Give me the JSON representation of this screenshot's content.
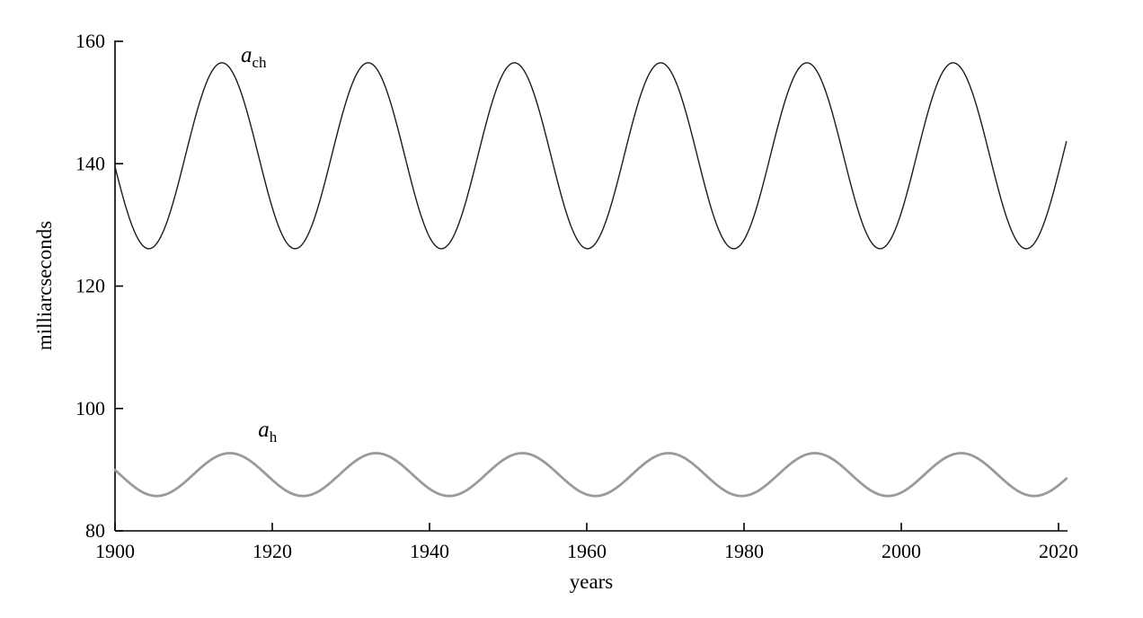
{
  "page": {
    "background": "#ffffff"
  },
  "chart_data": {
    "type": "line",
    "title": "",
    "xlabel": "years",
    "ylabel": "milliarcseconds",
    "xlim": [
      1900,
      2020
    ],
    "ylim": [
      80,
      160
    ],
    "x_ticks": [
      1900,
      1920,
      1940,
      1960,
      1980,
      2000,
      2020
    ],
    "y_ticks": [
      80,
      100,
      120,
      140,
      160
    ],
    "grid": false,
    "legend": "inline-curve-labels",
    "axis_color": "#000000",
    "series": [
      {
        "id": "ach",
        "name": "a_ch",
        "color": "#1c1c1c",
        "line_width": 1.4,
        "x_start": 1900,
        "x_end": 2021,
        "model": {
          "form": "cosine",
          "mean": 141.3,
          "amplitude": 15.2,
          "period_years": 18.6,
          "peak_year": 1913.6
        },
        "max": 156.5,
        "min": 126.1,
        "peak_years": [
          1913.6,
          1932.2,
          1950.8,
          1969.4,
          1988.0,
          2006.6
        ],
        "trough_years": [
          1904.3,
          1922.9,
          1941.5,
          1960.1,
          1978.7,
          1997.3,
          2015.9
        ],
        "value_at_1900": 139.0,
        "value_at_end": 143.6
      },
      {
        "id": "ah",
        "name": "a_h",
        "color": "#9a9a9a",
        "line_width": 2.8,
        "x_start": 1900,
        "x_end": 2021,
        "model": {
          "form": "cosine",
          "mean": 89.2,
          "amplitude": 3.5,
          "period_years": 18.6,
          "peak_year": 1914.6
        },
        "max": 92.7,
        "min": 85.7,
        "peak_years": [
          1914.6,
          1933.2,
          1951.8,
          1970.4,
          1989.0,
          2007.6
        ],
        "trough_years": [
          1905.3,
          1923.9,
          1942.5,
          1961.1,
          1979.7,
          1998.3,
          2016.9
        ],
        "value_at_1900": 90.0,
        "value_at_end": 88.6
      }
    ],
    "annotations": [
      {
        "id": "ach",
        "text_main": "a",
        "text_sub": "ch",
        "x": 1916.0,
        "y": 156.6
      },
      {
        "id": "ah",
        "text_main": "a",
        "text_sub": "h",
        "x": 1918.2,
        "y": 95.4
      }
    ]
  }
}
